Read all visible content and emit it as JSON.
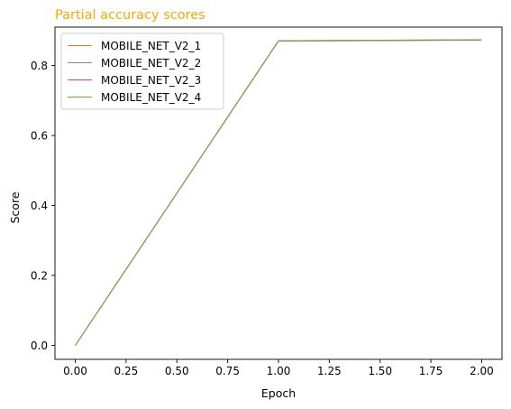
{
  "chart_data": {
    "type": "line",
    "title": "Partial accuracy scores",
    "title_color": "#f5a800",
    "xlabel": "Epoch",
    "ylabel": "Score",
    "x": [
      0,
      1,
      2
    ],
    "xlim": [
      -0.1,
      2.1
    ],
    "ylim": [
      -0.04,
      0.91
    ],
    "x_ticks": [
      "0.00",
      "0.25",
      "0.50",
      "0.75",
      "1.00",
      "1.25",
      "1.50",
      "1.75",
      "2.00"
    ],
    "x_tick_values": [
      0,
      0.25,
      0.5,
      0.75,
      1.0,
      1.25,
      1.5,
      1.75,
      2.0
    ],
    "y_ticks": [
      "0.0",
      "0.2",
      "0.4",
      "0.6",
      "0.8"
    ],
    "y_tick_values": [
      0,
      0.2,
      0.4,
      0.6,
      0.8
    ],
    "grid": false,
    "legend_position": "top-left",
    "series": [
      {
        "name": "MOBILE_NET_V2_1",
        "color": "#f07a1a",
        "values": [
          0.0,
          0.87,
          0.873
        ]
      },
      {
        "name": "MOBILE_NET_V2_2",
        "color": "#8a7fbf",
        "values": [
          0.0,
          0.871,
          0.874
        ]
      },
      {
        "name": "MOBILE_NET_V2_3",
        "color": "#e8359a",
        "values": [
          0.0,
          0.87,
          0.873
        ]
      },
      {
        "name": "MOBILE_NET_V2_4",
        "color": "#6aac3c",
        "values": [
          0.0,
          0.871,
          0.874
        ]
      }
    ]
  }
}
